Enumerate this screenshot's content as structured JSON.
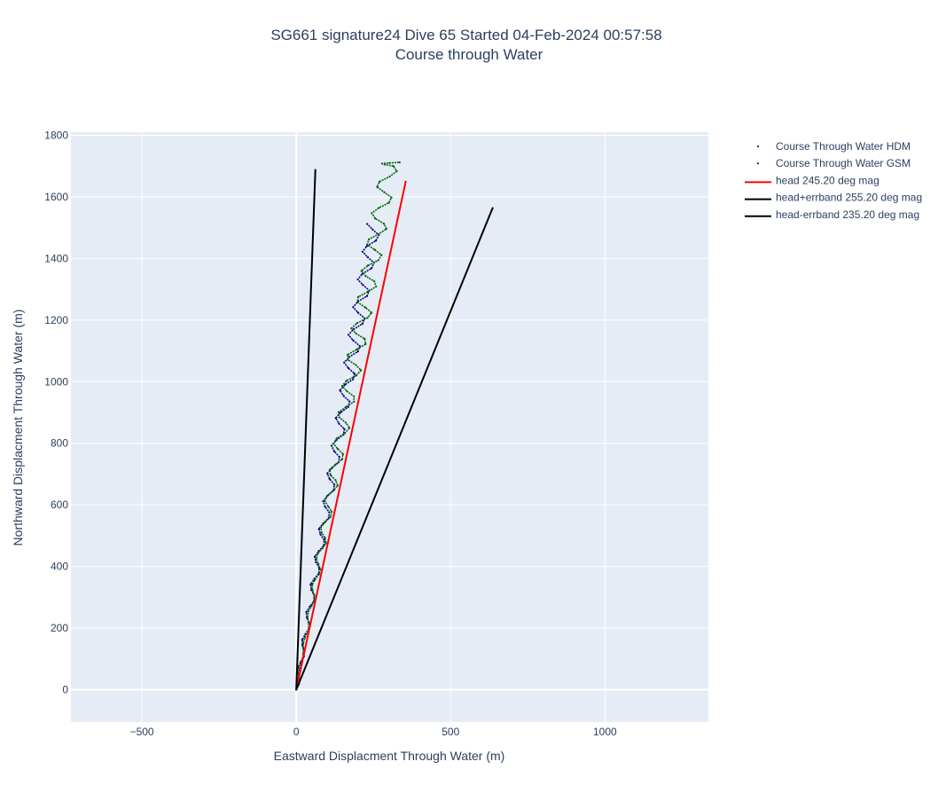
{
  "chart_data": {
    "type": "scatter",
    "title": "SG661 signature24 Dive 65 Started 04-Feb-2024 00:57:58",
    "subtitle": "Course through Water",
    "xlabel": "Eastward Displacment Through Water (m)",
    "ylabel": "Northward Displacment Through Water (m)",
    "xlim": [
      -730,
      1335
    ],
    "ylim": [
      -105,
      1810
    ],
    "x_ticks": [
      -500,
      0,
      500,
      1000
    ],
    "x_tick_labels": [
      "−500",
      "0",
      "500",
      "1000"
    ],
    "y_ticks": [
      0,
      200,
      400,
      600,
      800,
      1000,
      1200,
      1400,
      1600,
      1800
    ],
    "y_tick_labels": [
      "0",
      "200",
      "400",
      "600",
      "800",
      "1000",
      "1200",
      "1400",
      "1600",
      "1800"
    ],
    "grid": true,
    "legend_position": "right",
    "colors": {
      "plot_bg": "#e5ecf6",
      "grid": "#ffffff",
      "hdm": "#00008b",
      "gsm": "#006400",
      "head": "#ff0000",
      "errband": "#000000"
    },
    "series": [
      {
        "name": "Course Through Water HDM",
        "mode": "markers",
        "color": "#00008b",
        "x": [
          0,
          3,
          6,
          9,
          12,
          15,
          18,
          21,
          24,
          27,
          30,
          33,
          36,
          39,
          42,
          45,
          48,
          51,
          54,
          57,
          60,
          63,
          66,
          69,
          72,
          75,
          78,
          81,
          84,
          87,
          90,
          93,
          96,
          99,
          102,
          105,
          108,
          111,
          114,
          117,
          120,
          123,
          126,
          129,
          132,
          135,
          138,
          141,
          144,
          147,
          150,
          153,
          156,
          159,
          162,
          165,
          168,
          171,
          174,
          177,
          180,
          183,
          186,
          189,
          192,
          195,
          198,
          201,
          204,
          207,
          210,
          213,
          216,
          219,
          222,
          225,
          228,
          231,
          234,
          237,
          240,
          243,
          246,
          249,
          252
        ],
        "y": [
          0,
          18,
          36,
          54,
          72,
          90,
          108,
          126,
          144,
          162,
          180,
          198,
          216,
          234,
          252,
          270,
          288,
          306,
          324,
          342,
          360,
          378,
          396,
          414,
          432,
          450,
          468,
          486,
          504,
          522,
          540,
          558,
          576,
          594,
          612,
          630,
          648,
          666,
          684,
          702,
          720,
          738,
          756,
          774,
          792,
          810,
          828,
          846,
          864,
          882,
          900,
          918,
          936,
          954,
          972,
          990,
          1008,
          1026,
          1044,
          1062,
          1080,
          1098,
          1116,
          1134,
          1152,
          1170,
          1188,
          1206,
          1224,
          1242,
          1260,
          1278,
          1296,
          1314,
          1332,
          1350,
          1368,
          1386,
          1404,
          1422,
          1440,
          1458,
          1476,
          1494,
          1512
        ]
      },
      {
        "name": "Course Through Water GSM",
        "mode": "markers",
        "color": "#006400",
        "x": [
          0,
          3,
          6,
          9,
          12,
          15,
          18,
          21,
          24,
          27,
          30,
          33,
          36,
          39,
          42,
          45,
          48,
          51,
          54,
          57,
          60,
          63,
          66,
          69,
          72,
          75,
          78,
          81,
          84,
          87,
          90,
          93,
          96,
          99,
          102,
          105,
          108,
          111,
          114,
          117,
          120,
          123,
          126,
          129,
          132,
          135,
          138,
          141,
          144,
          147,
          150,
          153,
          156,
          159,
          162,
          165,
          168,
          171,
          174,
          177,
          180,
          183,
          186,
          189,
          192,
          195,
          198,
          201,
          204,
          207,
          210,
          213,
          216,
          219,
          222,
          225,
          228,
          231,
          234,
          237,
          240,
          243,
          246,
          249,
          252,
          255,
          258,
          261,
          264,
          267,
          270,
          273,
          276,
          279,
          282,
          285,
          288,
          291,
          294,
          297,
          300,
          303,
          306,
          309,
          312
        ],
        "y": [
          0,
          17,
          34,
          51,
          68,
          85,
          102,
          119,
          136,
          153,
          170,
          187,
          204,
          221,
          238,
          255,
          272,
          289,
          306,
          323,
          340,
          357,
          374,
          391,
          408,
          425,
          442,
          459,
          476,
          493,
          510,
          527,
          544,
          561,
          578,
          595,
          612,
          629,
          646,
          663,
          680,
          697,
          714,
          731,
          748,
          765,
          782,
          799,
          816,
          833,
          850,
          867,
          884,
          901,
          918,
          935,
          952,
          969,
          986,
          1003,
          1020,
          1037,
          1054,
          1071,
          1088,
          1105,
          1122,
          1139,
          1156,
          1173,
          1190,
          1207,
          1224,
          1241,
          1258,
          1275,
          1292,
          1309,
          1326,
          1343,
          1360,
          1377,
          1394,
          1411,
          1428,
          1445,
          1462,
          1479,
          1496,
          1513,
          1530,
          1547,
          1564,
          1581,
          1598,
          1615,
          1632,
          1649,
          1666,
          1683,
          1700,
          1705,
          1708,
          1710,
          1712
        ]
      },
      {
        "name": "head 245.20 deg mag",
        "mode": "lines",
        "color": "#ff0000",
        "x": [
          0,
          355
        ],
        "y": [
          0,
          1652
        ]
      },
      {
        "name": "head+errband 255.20 deg mag",
        "mode": "lines",
        "color": "#000000",
        "x": [
          0,
          62
        ],
        "y": [
          0,
          1690
        ]
      },
      {
        "name": "head-errband 235.20 deg mag",
        "mode": "lines",
        "color": "#000000",
        "x": [
          0,
          637
        ],
        "y": [
          0,
          1566
        ]
      }
    ]
  }
}
